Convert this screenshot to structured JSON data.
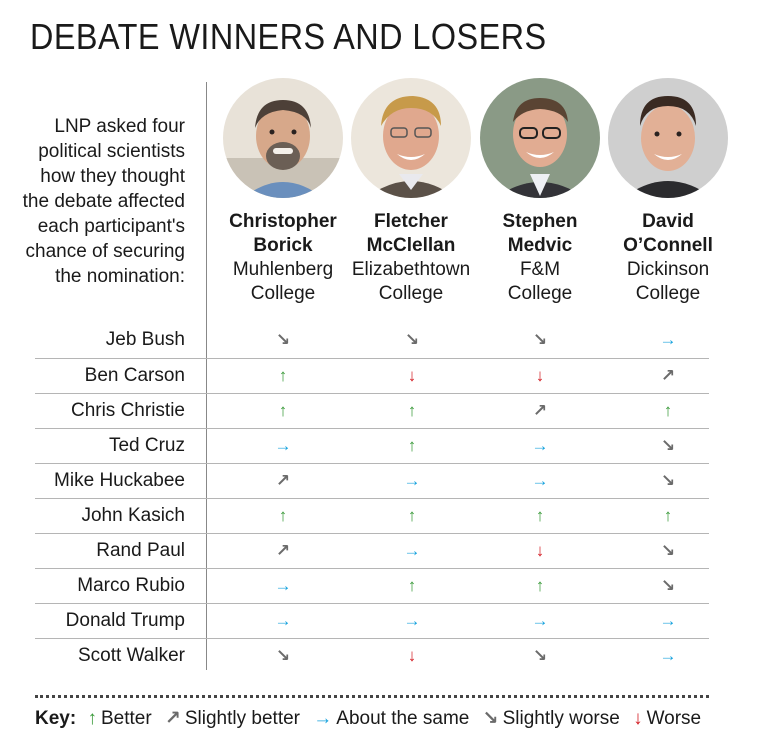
{
  "title": "DEBATE WINNERS AND LOSERS",
  "intro": "LNP asked four political scientists how they thought the debate affected each participant's chance of securing the nomination:",
  "scientists": [
    {
      "first": "Christopher",
      "last": "Borick",
      "inst1": "Muhlenberg",
      "inst2": "College"
    },
    {
      "first": "Fletcher",
      "last": "McClellan",
      "inst1": "Elizabethtown",
      "inst2": "College"
    },
    {
      "first": "Stephen",
      "last": "Medvic",
      "inst1": "F&M",
      "inst2": "College"
    },
    {
      "first": "David",
      "last": "O’Connell",
      "inst1": "Dickinson",
      "inst2": "College"
    }
  ],
  "symbols": {
    "better": "↑",
    "slightly_better": "↗",
    "same": "→",
    "slightly_worse": "↘",
    "worse": "↓"
  },
  "colors": {
    "better": "#3a9a3a",
    "slightly": "#6b6b6b",
    "same": "#1aa3de",
    "worse": "#d42027"
  },
  "rows": [
    {
      "name": "Jeb Bush",
      "ratings": [
        "slightly_worse",
        "slightly_worse",
        "slightly_worse",
        "same"
      ]
    },
    {
      "name": "Ben Carson",
      "ratings": [
        "better",
        "worse",
        "worse",
        "slightly_better"
      ]
    },
    {
      "name": "Chris Christie",
      "ratings": [
        "better",
        "better",
        "slightly_better",
        "better"
      ]
    },
    {
      "name": "Ted Cruz",
      "ratings": [
        "same",
        "better",
        "same",
        "slightly_worse"
      ]
    },
    {
      "name": "Mike Huckabee",
      "ratings": [
        "slightly_better",
        "same",
        "same",
        "slightly_worse"
      ]
    },
    {
      "name": "John Kasich",
      "ratings": [
        "better",
        "better",
        "better",
        "better"
      ]
    },
    {
      "name": "Rand Paul",
      "ratings": [
        "slightly_better",
        "same",
        "worse",
        "slightly_worse"
      ]
    },
    {
      "name": "Marco Rubio",
      "ratings": [
        "same",
        "better",
        "better",
        "slightly_worse"
      ]
    },
    {
      "name": "Donald Trump",
      "ratings": [
        "same",
        "same",
        "same",
        "same"
      ]
    },
    {
      "name": "Scott Walker",
      "ratings": [
        "slightly_worse",
        "worse",
        "slightly_worse",
        "same"
      ]
    }
  ],
  "key": {
    "label": "Key:",
    "items": [
      {
        "rating": "better",
        "symbol": "↑",
        "label": "Better"
      },
      {
        "rating": "slightly_better",
        "symbol": "↗",
        "label": "Slightly better"
      },
      {
        "rating": "same",
        "symbol": "→",
        "label": "About the same"
      },
      {
        "rating": "slightly_worse",
        "symbol": "↘",
        "label": "Slightly worse"
      },
      {
        "rating": "worse",
        "symbol": "↓",
        "label": "Worse"
      }
    ]
  }
}
